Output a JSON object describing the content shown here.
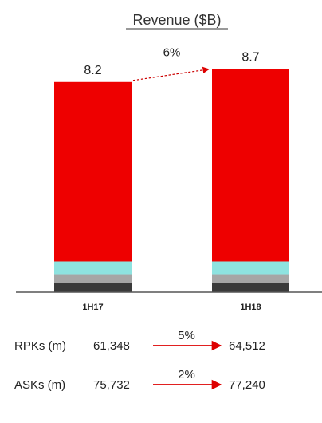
{
  "chart_data": {
    "type": "bar",
    "stacked": true,
    "title": "Revenue ($B)",
    "categories": [
      "1H17",
      "1H18"
    ],
    "totals": [
      8.2,
      8.7
    ],
    "series": [
      {
        "values": [
          0.35,
          0.35
        ],
        "color": "#3a3a3a"
      },
      {
        "values": [
          0.35,
          0.35
        ],
        "color": "#a6a6a6"
      },
      {
        "values": [
          0.5,
          0.5
        ],
        "color": "#8ee3e0"
      },
      {
        "values": [
          7.0,
          7.5
        ],
        "color": "#ee0000"
      }
    ],
    "growth": {
      "label": "6%",
      "color": "#cc0000"
    },
    "ylim": [
      0,
      10
    ],
    "grid": false
  },
  "metrics": [
    {
      "label": "RPKs (m)",
      "from": "61,348",
      "change": "5%",
      "to": "64,512"
    },
    {
      "label": "ASKs (m)",
      "from": "75,732",
      "change": "2%",
      "to": "77,240"
    }
  ],
  "colors": {
    "arrow": "#dd0000",
    "axis": "#555555"
  }
}
